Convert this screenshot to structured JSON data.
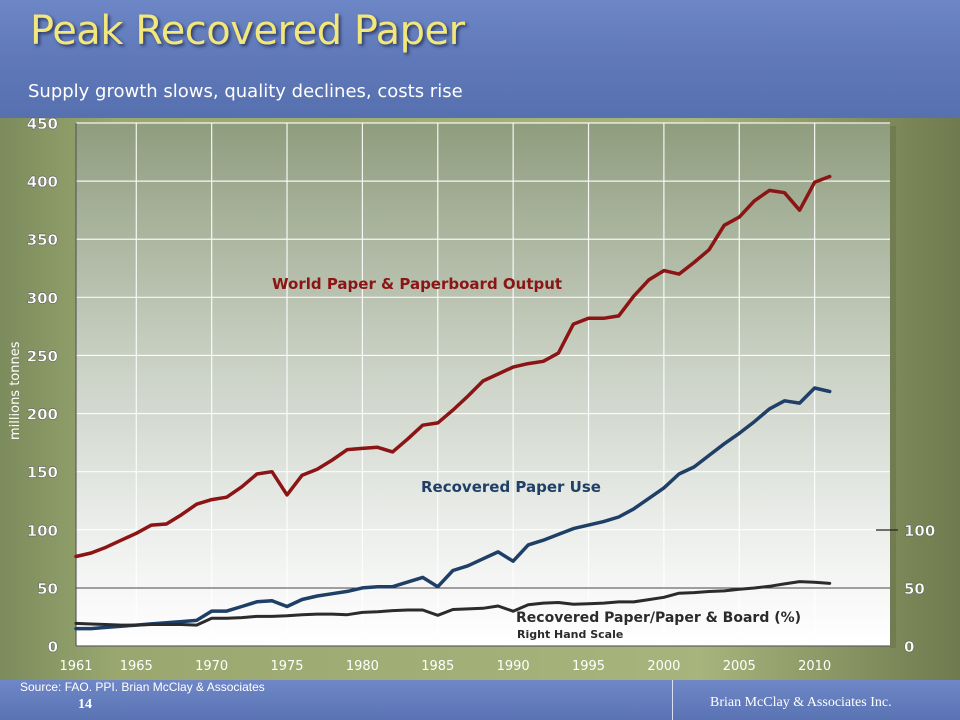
{
  "slide": {
    "title": "Peak Recovered Paper",
    "subtitle": "Supply growth slows, quality declines, costs rise",
    "source": "Source:  FAO. PPI. Brian McClay & Associates",
    "page_number": "14",
    "company": "Brian McClay & Associates Inc."
  },
  "chart_data": {
    "type": "line",
    "title": "",
    "ylabel": "millions tonnes",
    "xlabel": "",
    "xlim": [
      1961,
      2015
    ],
    "ylim": [
      0,
      450
    ],
    "x_ticks": [
      1961,
      1965,
      1970,
      1975,
      1980,
      1985,
      1990,
      1995,
      2000,
      2005,
      2010
    ],
    "y_ticks": [
      0,
      50,
      100,
      150,
      200,
      250,
      300,
      350,
      400,
      450
    ],
    "right_axis": {
      "ticks": [
        0,
        50,
        100
      ],
      "ylim": [
        0,
        100
      ]
    },
    "grid": true,
    "series": [
      {
        "name": "World Paper & Paperboard Output",
        "color": "#8b1414",
        "axis": "left",
        "x": [
          1961,
          1962,
          1963,
          1964,
          1965,
          1966,
          1967,
          1968,
          1969,
          1970,
          1971,
          1972,
          1973,
          1974,
          1975,
          1976,
          1977,
          1978,
          1979,
          1980,
          1981,
          1982,
          1983,
          1984,
          1985,
          1986,
          1987,
          1988,
          1989,
          1990,
          1991,
          1992,
          1993,
          1994,
          1995,
          1996,
          1997,
          1998,
          1999,
          2000,
          2001,
          2002,
          2003,
          2004,
          2005,
          2006,
          2007,
          2008,
          2009,
          2010,
          2011
        ],
        "values": [
          77,
          80,
          85,
          91,
          97,
          104,
          105,
          113,
          122,
          126,
          128,
          137,
          148,
          150,
          130,
          147,
          152,
          160,
          169,
          170,
          171,
          167,
          178,
          190,
          192,
          203,
          215,
          228,
          234,
          240,
          243,
          245,
          252,
          277,
          282,
          282,
          284,
          301,
          315,
          323,
          320,
          330,
          341,
          362,
          369,
          383,
          392,
          390,
          375,
          399,
          404
        ]
      },
      {
        "name": "Recovered Paper Use",
        "color": "#1f3f66",
        "axis": "left",
        "x": [
          1961,
          1962,
          1963,
          1964,
          1965,
          1966,
          1967,
          1968,
          1969,
          1970,
          1971,
          1972,
          1973,
          1974,
          1975,
          1976,
          1977,
          1978,
          1979,
          1980,
          1981,
          1982,
          1983,
          1984,
          1985,
          1986,
          1987,
          1988,
          1989,
          1990,
          1991,
          1992,
          1993,
          1994,
          1995,
          1996,
          1997,
          1998,
          1999,
          2000,
          2001,
          2002,
          2003,
          2004,
          2005,
          2006,
          2007,
          2008,
          2009,
          2010,
          2011
        ],
        "values": [
          15,
          15,
          16,
          17,
          18,
          19,
          20,
          21,
          22,
          30,
          30,
          34,
          38,
          39,
          34,
          40,
          43,
          45,
          47,
          50,
          51,
          51,
          55,
          59,
          51,
          65,
          69,
          75,
          81,
          73,
          87,
          91,
          96,
          101,
          104,
          107,
          111,
          118,
          127,
          136,
          148,
          154,
          164,
          174,
          183,
          193,
          204,
          211,
          209,
          222,
          219
        ]
      },
      {
        "name": "Recovered Paper/Paper & Board (%)",
        "note": "Right Hand Scale",
        "color": "#2b2b2b",
        "axis": "right",
        "x": [
          1961,
          1962,
          1963,
          1964,
          1965,
          1966,
          1967,
          1968,
          1969,
          1970,
          1971,
          1972,
          1973,
          1974,
          1975,
          1976,
          1977,
          1978,
          1979,
          1980,
          1981,
          1982,
          1983,
          1984,
          1985,
          1986,
          1987,
          1988,
          1989,
          1990,
          1991,
          1992,
          1993,
          1994,
          1995,
          1996,
          1997,
          1998,
          1999,
          2000,
          2001,
          2002,
          2003,
          2004,
          2005,
          2006,
          2007,
          2008,
          2009,
          2010,
          2011
        ],
        "values": [
          19.5,
          19,
          18.5,
          18,
          18,
          18.5,
          18.5,
          18.5,
          18,
          24,
          24,
          24.5,
          25.5,
          25.5,
          26,
          27,
          27.5,
          27.5,
          27,
          29,
          29.5,
          30.5,
          31,
          31,
          26.5,
          31.5,
          32,
          32.5,
          34.5,
          30,
          35.5,
          37,
          37.5,
          36,
          36.5,
          37,
          38,
          38,
          40,
          42,
          45.5,
          46,
          47,
          47.5,
          49,
          50,
          51.5,
          53.5,
          55.5,
          55,
          54
        ]
      }
    ]
  }
}
